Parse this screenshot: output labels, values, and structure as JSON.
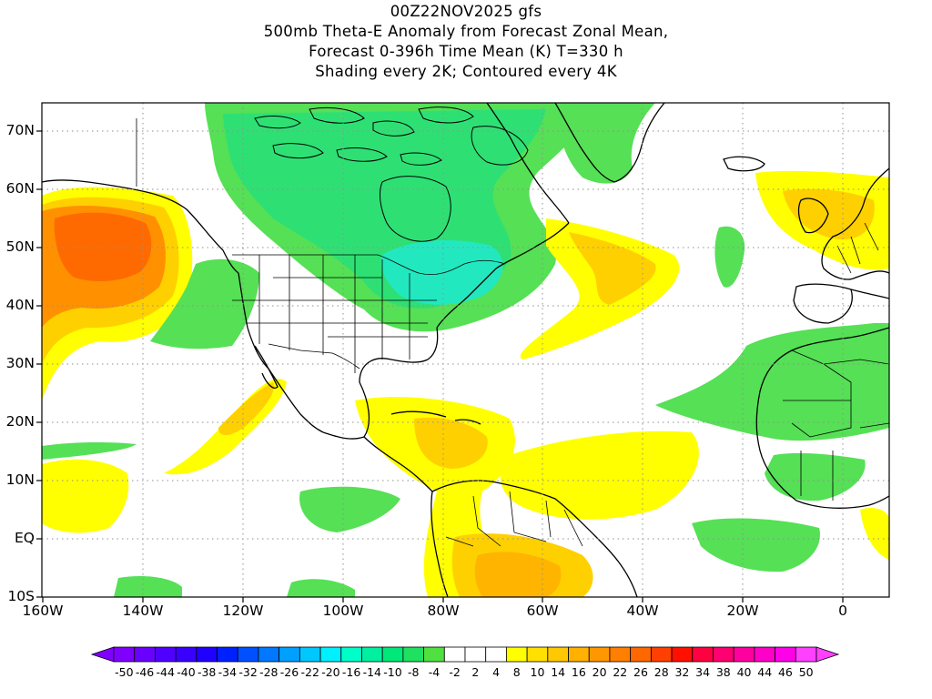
{
  "title": {
    "line1": "00Z22NOV2025 gfs",
    "line2": "500mb Theta-E Anomaly from Forecast Zonal Mean,",
    "line3": "Forecast 0-396h Time Mean (K) T=330 h",
    "line4": "Shading every 2K; Contoured every 4K"
  },
  "map": {
    "lat_labels": [
      "70N",
      "60N",
      "50N",
      "40N",
      "30N",
      "20N",
      "10N",
      "EQ",
      "10S"
    ],
    "lon_labels": [
      "160W",
      "140W",
      "120W",
      "100W",
      "80W",
      "60W",
      "40W",
      "20W",
      "0"
    ],
    "colors": {
      "green_light": "#55e055",
      "green": "#2ee074",
      "aqua": "#22e8c0",
      "yellow": "#ffff00",
      "gold": "#ffd000",
      "orange_light": "#ffb400",
      "orange": "#ff9100",
      "orange_dark": "#ff6a00",
      "red_orange": "#ff4a00",
      "coast": "#000000",
      "grid": "#909090"
    }
  },
  "colorbar": {
    "labels": [
      "-50",
      "-46",
      "-44",
      "-40",
      "-38",
      "-34",
      "-32",
      "-28",
      "-26",
      "-22",
      "-20",
      "-16",
      "-14",
      "-10",
      "-8",
      "-4",
      "-2",
      "2",
      "4",
      "8",
      "10",
      "14",
      "16",
      "20",
      "22",
      "26",
      "28",
      "32",
      "34",
      "38",
      "40",
      "44",
      "46",
      "50"
    ],
    "colors": [
      "#8000ff",
      "#6a00ff",
      "#5000ff",
      "#3a00ff",
      "#2000ff",
      "#0020ff",
      "#0050ff",
      "#0078ff",
      "#00a0ff",
      "#00c8ff",
      "#00f0ff",
      "#00ffc8",
      "#00f0a0",
      "#00e878",
      "#20e060",
      "#50e040",
      "#ffffff",
      "#ffffff",
      "#ffffff",
      "#ffff00",
      "#ffe000",
      "#ffc800",
      "#ffb000",
      "#ff9800",
      "#ff8000",
      "#ff6800",
      "#ff4000",
      "#ff1000",
      "#ff0040",
      "#ff0070",
      "#ff00a0",
      "#ff00c8",
      "#ff00e8",
      "#ff40ff"
    ]
  }
}
